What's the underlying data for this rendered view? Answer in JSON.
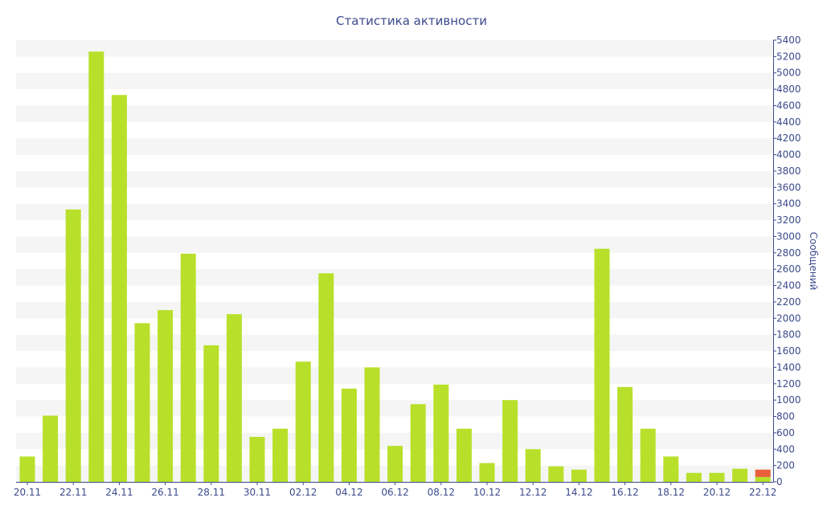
{
  "chart_data": {
    "type": "bar",
    "title": "Статистика активности",
    "xlabel": "",
    "ylabel": "Сообщений",
    "ylim": [
      0,
      5400
    ],
    "y_ticks": [
      0,
      200,
      400,
      600,
      800,
      1000,
      1200,
      1400,
      1600,
      1800,
      2000,
      2200,
      2400,
      2600,
      2800,
      3000,
      3200,
      3400,
      3600,
      3800,
      4000,
      4200,
      4400,
      4600,
      4800,
      5000,
      5200,
      5400
    ],
    "y_axis_side": "right",
    "grid": "alternating horizontal bands",
    "legend": "none",
    "categories": [
      "20.11",
      "21.11",
      "22.11",
      "23.11",
      "24.11",
      "25.11",
      "26.11",
      "27.11",
      "28.11",
      "29.11",
      "30.11",
      "01.12",
      "02.12",
      "03.12",
      "04.12",
      "05.12",
      "06.12",
      "07.12",
      "08.12",
      "09.12",
      "10.12",
      "11.12",
      "12.12",
      "13.12",
      "14.12",
      "15.12",
      "16.12",
      "17.12",
      "18.12",
      "19.12",
      "20.12",
      "21.12",
      "22.12"
    ],
    "x_tick_labels": [
      "20.11",
      "22.11",
      "24.11",
      "26.11",
      "28.11",
      "30.11",
      "02.12",
      "04.12",
      "06.12",
      "08.12",
      "10.12",
      "12.12",
      "14.12",
      "16.12",
      "18.12",
      "20.12",
      "22.12"
    ],
    "series": [
      {
        "color": "#b8e02a",
        "values": [
          310,
          810,
          3330,
          5260,
          4730,
          1940,
          2100,
          2790,
          1670,
          2050,
          550,
          650,
          1470,
          2550,
          1140,
          1400,
          440,
          950,
          1190,
          650,
          230,
          1000,
          400,
          190,
          150,
          2850,
          1160,
          650,
          310,
          110,
          110,
          160,
          60
        ]
      },
      {
        "color": "#e8603c",
        "values": [
          0,
          0,
          0,
          0,
          0,
          0,
          0,
          0,
          0,
          0,
          0,
          0,
          0,
          0,
          0,
          0,
          0,
          0,
          0,
          0,
          0,
          0,
          0,
          0,
          0,
          0,
          0,
          0,
          0,
          0,
          0,
          0,
          90
        ]
      }
    ],
    "colors": {
      "axis": "#3b4a8c",
      "band": "#f5f5f5"
    }
  }
}
